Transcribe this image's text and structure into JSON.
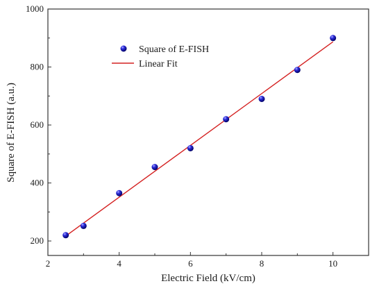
{
  "chart_data": {
    "type": "scatter",
    "xlabel": "Electric Field (kV/cm)",
    "ylabel": "Square of E-FISH (a.u.)",
    "xlim": [
      2,
      11
    ],
    "ylim": [
      150,
      1000
    ],
    "xticks": [
      2,
      4,
      6,
      8,
      10
    ],
    "yticks": [
      200,
      400,
      600,
      800,
      1000
    ],
    "xtick_labels": [
      "2",
      "4",
      "6",
      "8",
      "10"
    ],
    "ytick_labels": [
      "200",
      "400",
      "600",
      "800",
      "1000"
    ],
    "grid": false,
    "legend_position": "top-left",
    "series": [
      {
        "name": "Square of E-FISH",
        "kind": "scatter",
        "color": "#1a1acc",
        "x": [
          2.5,
          3,
          4,
          5,
          6,
          7,
          8,
          9,
          10
        ],
        "y": [
          220,
          252,
          365,
          455,
          520,
          620,
          690,
          790,
          900
        ]
      },
      {
        "name": "Linear Fit",
        "kind": "line",
        "color": "#d42020",
        "x": [
          2.5,
          10
        ],
        "y": [
          217,
          887
        ]
      }
    ]
  }
}
